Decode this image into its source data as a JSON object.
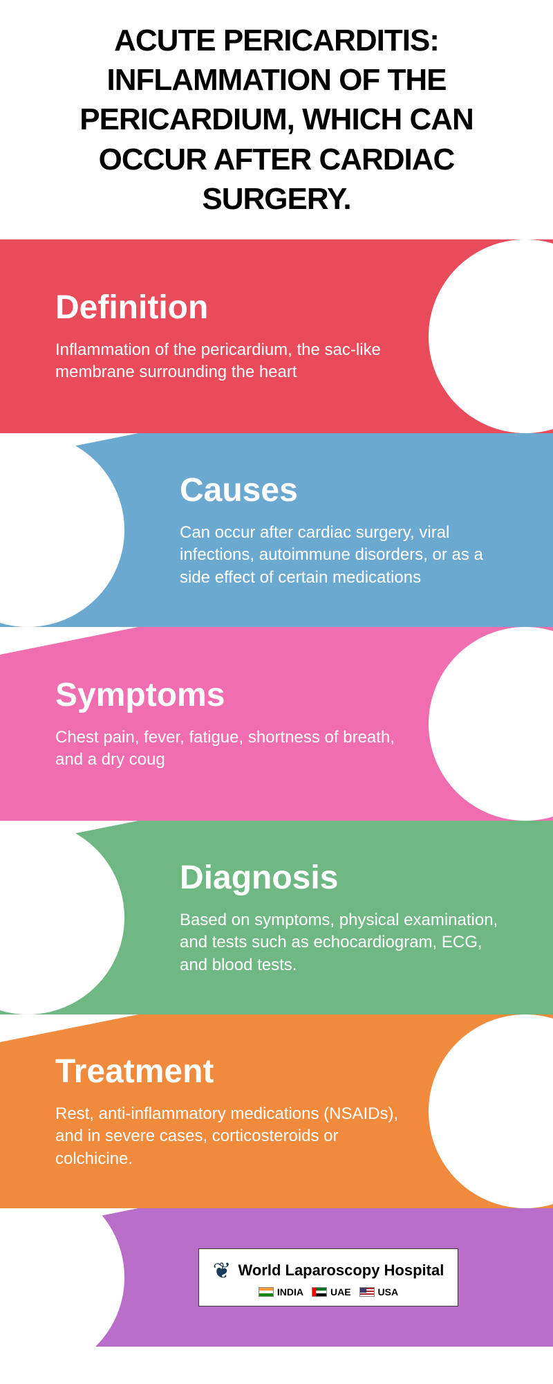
{
  "title": "ACUTE PERICARDITIS: INFLAMMATION OF THE PERICARDIUM, WHICH CAN OCCUR AFTER CARDIAC SURGERY.",
  "sections": [
    {
      "heading": "Definition",
      "body": "Inflammation of the pericardium, the sac-like membrane surrounding the heart",
      "bg_color": "#e94b5a",
      "side": "left"
    },
    {
      "heading": "Causes",
      "body": "Can occur after cardiac surgery, viral infections, autoimmune disorders, or as a side effect of certain medications",
      "bg_color": "#6ba9d0",
      "side": "right"
    },
    {
      "heading": "Symptoms",
      "body": "Chest pain, fever, fatigue, shortness of breath, and a dry coug",
      "bg_color": "#f06eb0",
      "side": "left"
    },
    {
      "heading": "Diagnosis",
      "body": "Based on symptoms, physical examination, and tests such as echocardiogram, ECG, and blood tests.",
      "bg_color": "#6fb884",
      "side": "right"
    },
    {
      "heading": "Treatment",
      "body": "Rest, anti-inflammatory medications (NSAIDs), and in severe cases, corticosteroids or colchicine.",
      "bg_color": "#f08a3c",
      "side": "left"
    }
  ],
  "footer": {
    "bg_color": "#b96eca",
    "org_name": "World Laparoscopy Hospital",
    "locations": [
      "INDIA",
      "UAE",
      "USA"
    ]
  }
}
